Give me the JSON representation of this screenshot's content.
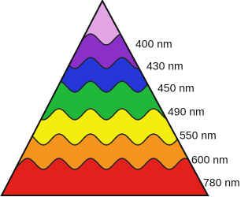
{
  "labels": [
    "400 nm",
    "430 nm",
    "450 nm",
    "490 nm",
    "550 nm",
    "600 nm",
    "780 nm"
  ]
}
